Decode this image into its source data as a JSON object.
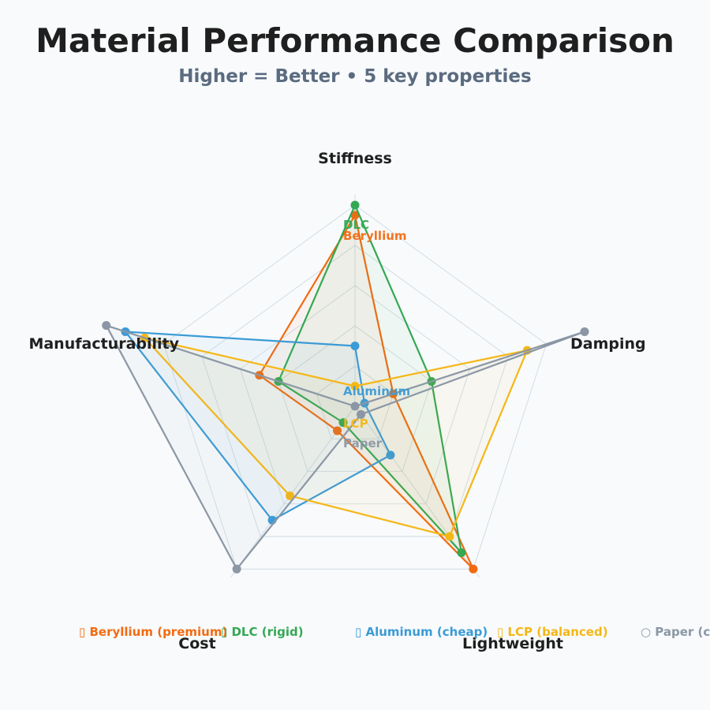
{
  "chart_data": {
    "type": "radar",
    "title": "Material Performance Comparison",
    "subtitle": "Higher = Better • 5 key properties",
    "axes": [
      "Stiffness",
      "Damping",
      "Lightweight",
      "Cost",
      "Manufacturability"
    ],
    "range": [
      0,
      10
    ],
    "grid": true,
    "legend_position": "bottom",
    "series": [
      {
        "name": "Beryllium",
        "legend": "▯ Beryllium (premium)",
        "color": "#f26b12",
        "values": [
          9.5,
          2.0,
          10.0,
          1.5,
          5.0
        ]
      },
      {
        "name": "DLC",
        "legend": "▯ DLC (rigid)",
        "color": "#34a853",
        "values": [
          10.0,
          4.0,
          9.0,
          1.0,
          4.0
        ]
      },
      {
        "name": "Aluminum",
        "legend": "▯ Aluminum (cheap)",
        "color": "#3b9bd6",
        "values": [
          3.0,
          0.5,
          3.0,
          7.0,
          12.0
        ]
      },
      {
        "name": "LCP",
        "legend": "▯ LCP (balanced)",
        "color": "#f5b716",
        "values": [
          1.0,
          9.0,
          8.0,
          5.5,
          11.0
        ]
      },
      {
        "name": "Paper",
        "legend": "○ Paper (cheap)",
        "color": "#8b97a5",
        "values": [
          0.0,
          12.0,
          0.5,
          10.0,
          13.0
        ]
      }
    ]
  }
}
